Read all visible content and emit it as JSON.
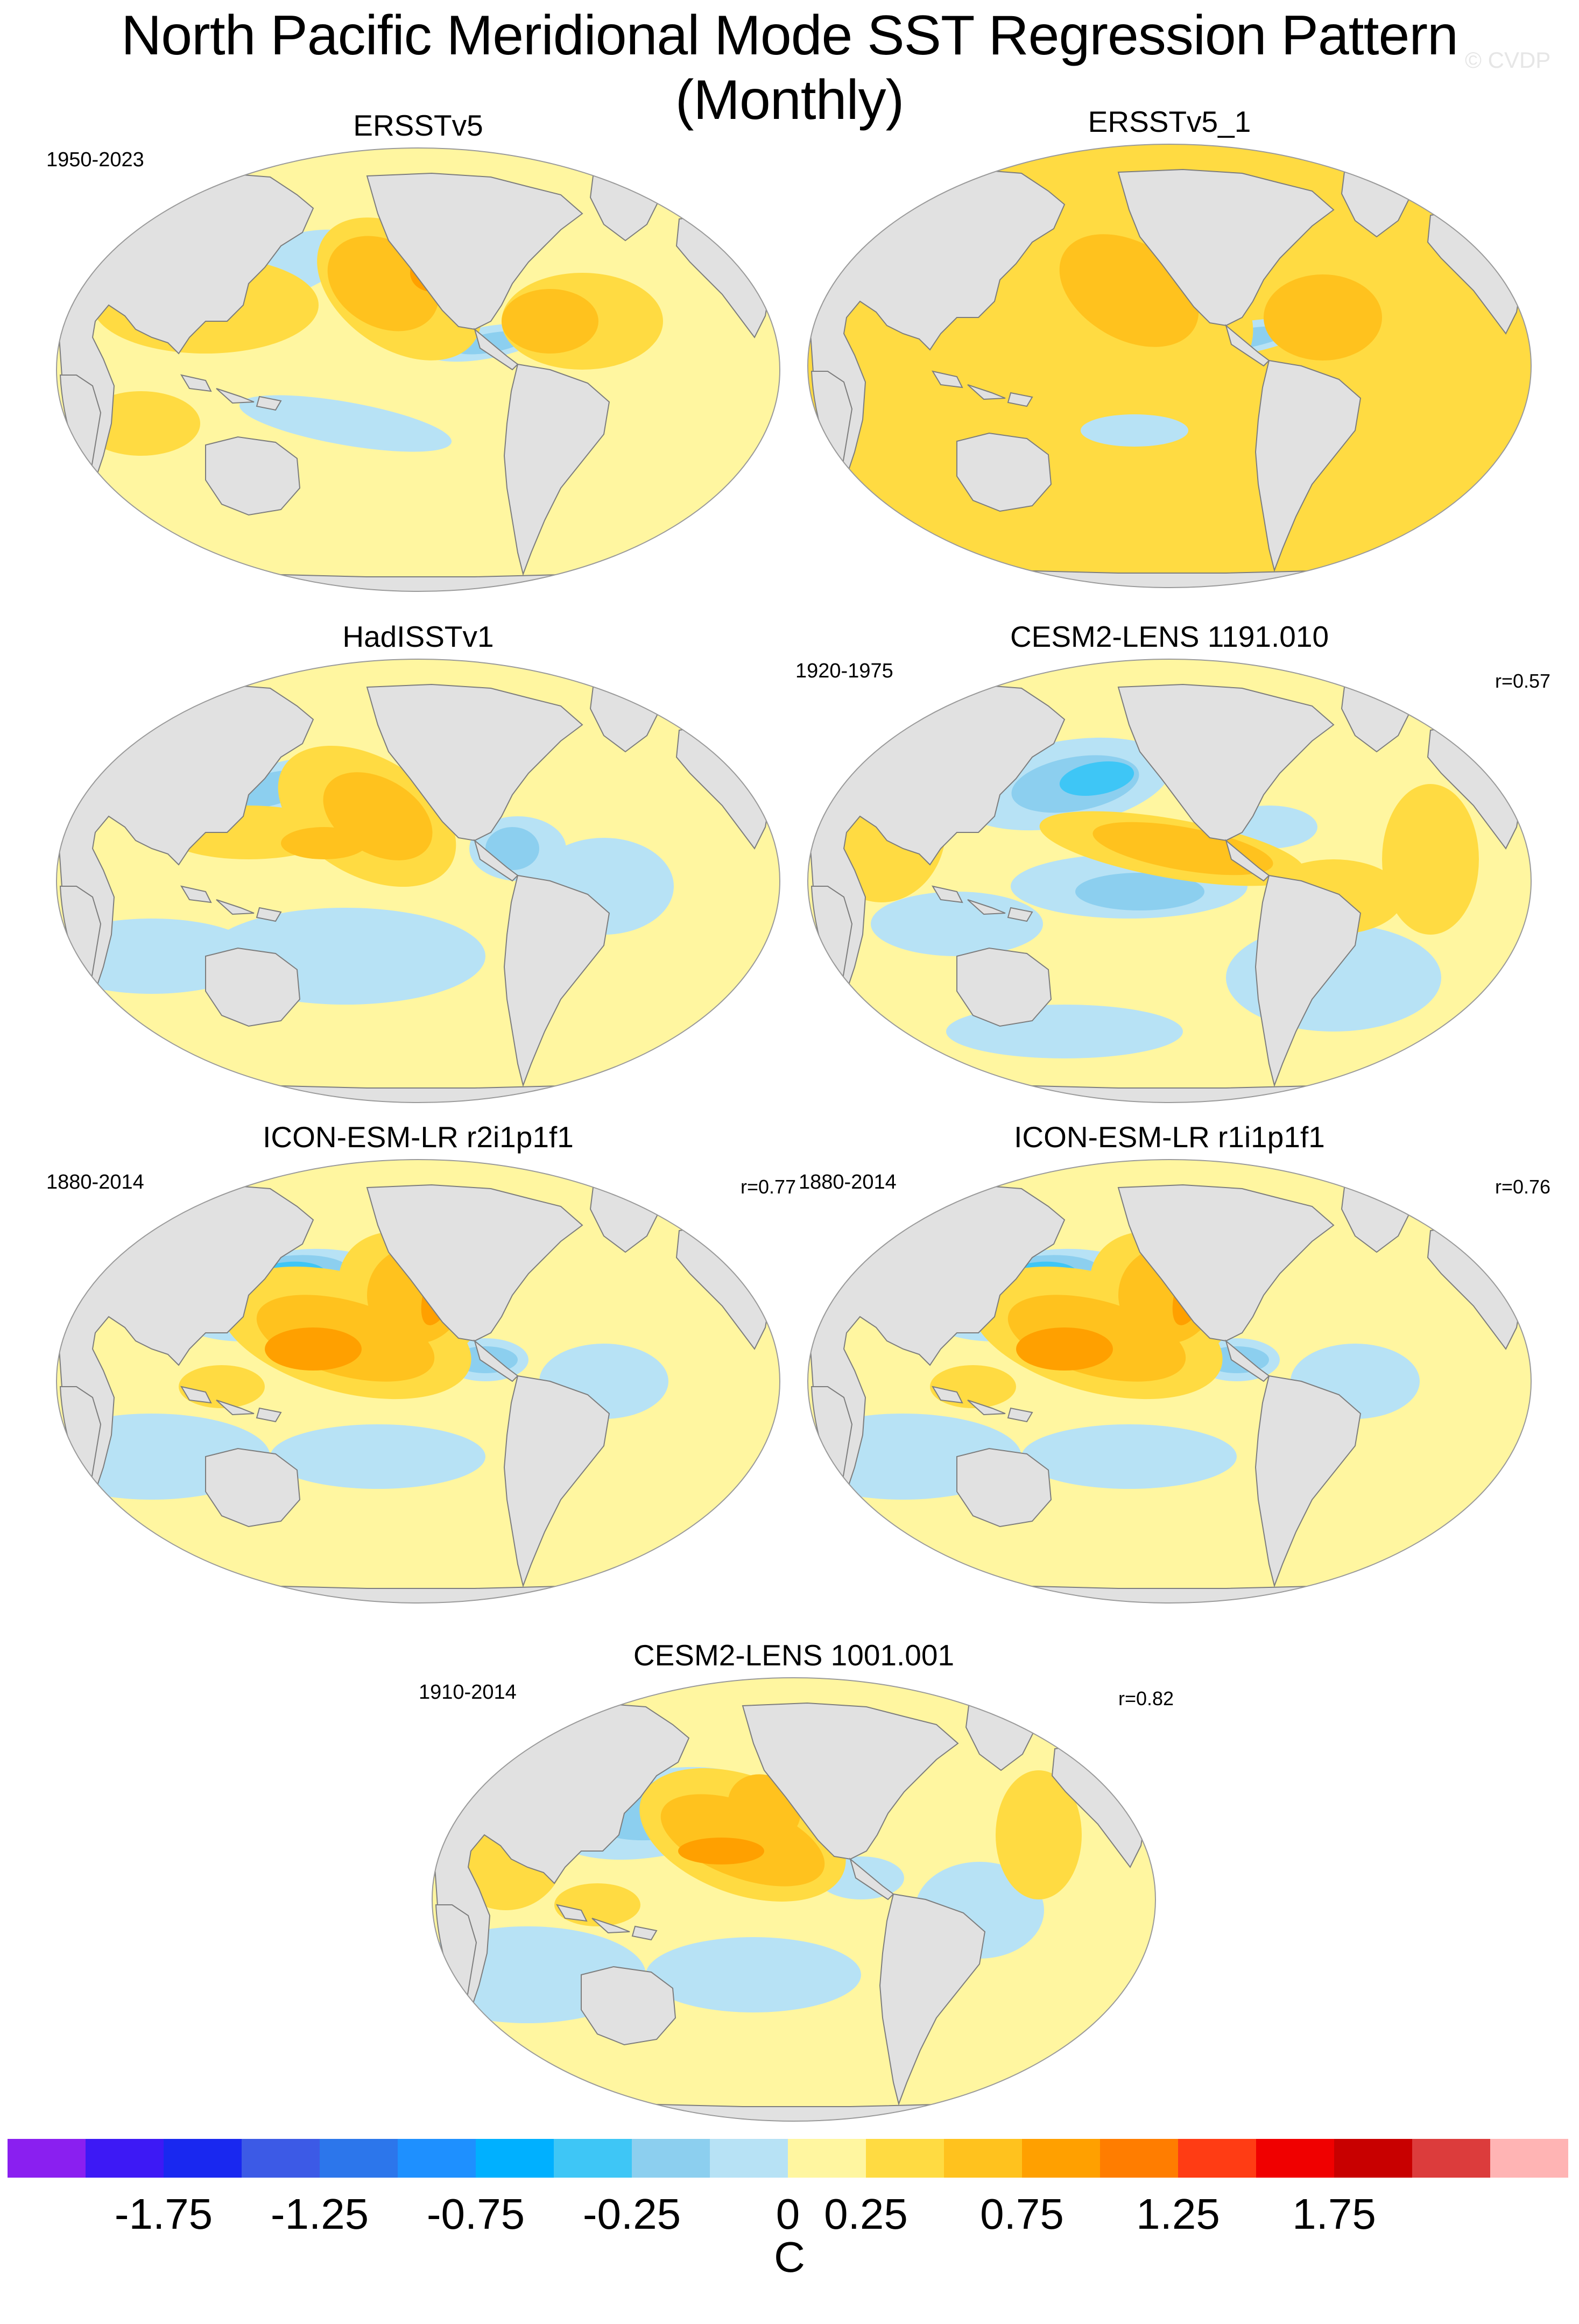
{
  "title": "North Pacific Meridional Mode SST Regression Pattern (Monthly)",
  "credit": "© CVDP",
  "panels": [
    {
      "title": "ERSSTv5",
      "period": "1950-2023",
      "r": ""
    },
    {
      "title": "ERSSTv5_1",
      "period": "",
      "r": ""
    },
    {
      "title": "HadISSTv1",
      "period": "",
      "r": ""
    },
    {
      "title": "CESM2-LENS 1191.010",
      "period": "1920-1975",
      "r": "r=0.57"
    },
    {
      "title": "ICON-ESM-LR r2i1p1f1",
      "period": "1880-2014",
      "r": "r=0.77"
    },
    {
      "title": "ICON-ESM-LR r1i1p1f1",
      "period": "1880-2014",
      "r": "r=0.76"
    },
    {
      "title": "CESM2-LENS 1001.001",
      "period": "1910-2014",
      "r": "r=0.82"
    }
  ],
  "colorbar": {
    "unit": "C",
    "tick_labels": [
      "-1.75",
      "-1.25",
      "-0.75",
      "-0.25",
      "0",
      "0.25",
      "0.75",
      "1.25",
      "1.75"
    ],
    "colors": [
      "#8a1ff0",
      "#3d19f5",
      "#1928f0",
      "#3c5ae6",
      "#2c76eb",
      "#1e90ff",
      "#00b0ff",
      "#3ec6f6",
      "#8ccfef",
      "#b7e2f5",
      "#fff6a0",
      "#ffdb42",
      "#ffc21e",
      "#ffa000",
      "#ff7d00",
      "#ff3c14",
      "#f00000",
      "#c80000",
      "#dc3c3c",
      "#ffb4b4"
    ]
  },
  "palette": {
    "land": "#e1e1e1",
    "coast": "#7d7d7d",
    "cold": "#b7e2f5",
    "cold2": "#8ccfef",
    "cold3": "#3ec6f6",
    "warm": "#fff6a0",
    "warm2": "#ffdb42",
    "warm3": "#ffc21e",
    "warm4": "#ffa000",
    "warm5": "#ff3c14"
  }
}
